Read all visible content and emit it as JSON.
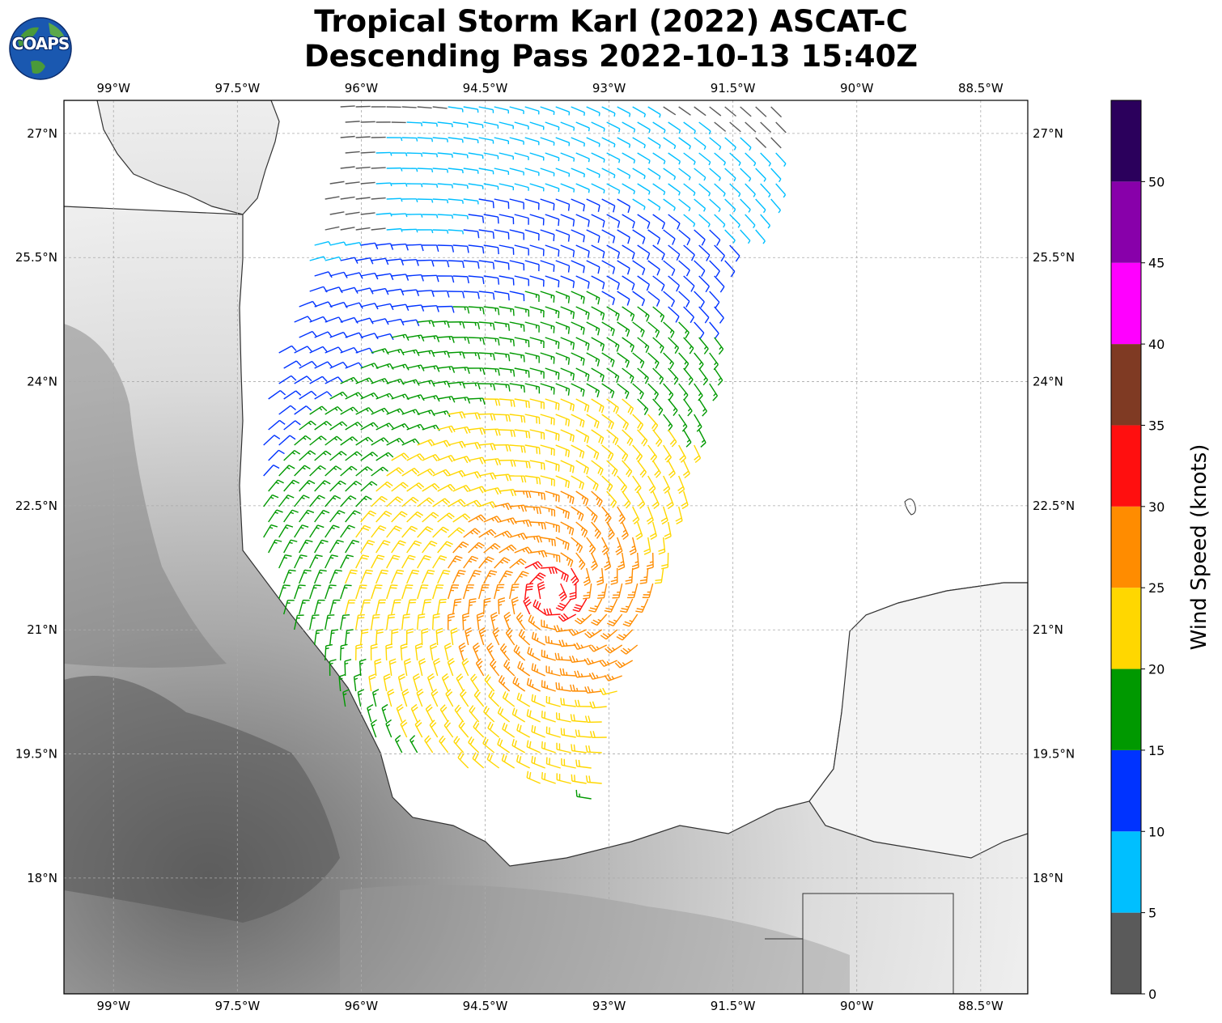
{
  "title": {
    "line1": "Tropical Storm Karl (2022) ASCAT-C",
    "line2": "Descending Pass 2022-10-13 15:40Z"
  },
  "logo": {
    "text": "COAPS"
  },
  "map": {
    "lon_range": [
      -99.6,
      -87.93
    ],
    "lat_range": [
      16.6,
      27.4
    ],
    "x_ticks": [
      {
        "lon": -99.0,
        "label": "99°W"
      },
      {
        "lon": -97.5,
        "label": "97.5°W"
      },
      {
        "lon": -96.0,
        "label": "96°W"
      },
      {
        "lon": -94.5,
        "label": "94.5°W"
      },
      {
        "lon": -93.0,
        "label": "93°W"
      },
      {
        "lon": -91.5,
        "label": "91.5°W"
      },
      {
        "lon": -90.0,
        "label": "90°W"
      },
      {
        "lon": -88.5,
        "label": "88.5°W"
      }
    ],
    "y_ticks": [
      {
        "lat": 27.0,
        "label": "27°N"
      },
      {
        "lat": 25.5,
        "label": "25.5°N"
      },
      {
        "lat": 24.0,
        "label": "24°N"
      },
      {
        "lat": 22.5,
        "label": "22.5°N"
      },
      {
        "lat": 21.0,
        "label": "21°N"
      },
      {
        "lat": 19.5,
        "label": "19.5°N"
      },
      {
        "lat": 18.0,
        "label": "18°N"
      }
    ],
    "gridlines": true,
    "storm_center": {
      "lon": -93.7,
      "lat": 21.45
    }
  },
  "colorbar": {
    "title": "Wind Speed (knots)",
    "bins": [
      {
        "from": 0,
        "to": 5,
        "color": "#5a5a5a"
      },
      {
        "from": 5,
        "to": 10,
        "color": "#00bfff"
      },
      {
        "from": 10,
        "to": 15,
        "color": "#0033ff"
      },
      {
        "from": 15,
        "to": 20,
        "color": "#009900"
      },
      {
        "from": 20,
        "to": 25,
        "color": "#ffd700"
      },
      {
        "from": 25,
        "to": 30,
        "color": "#ff8c00"
      },
      {
        "from": 30,
        "to": 35,
        "color": "#ff0f0f"
      },
      {
        "from": 35,
        "to": 40,
        "color": "#7f3a23"
      },
      {
        "from": 40,
        "to": 45,
        "color": "#ff00ff"
      },
      {
        "from": 45,
        "to": 50,
        "color": "#8800aa"
      },
      {
        "from": 50,
        "to": 55,
        "color": "#2b005c"
      }
    ],
    "tick_labels": [
      "0",
      "5",
      "10",
      "15",
      "20",
      "25",
      "30",
      "35",
      "40",
      "45",
      "50"
    ]
  }
}
